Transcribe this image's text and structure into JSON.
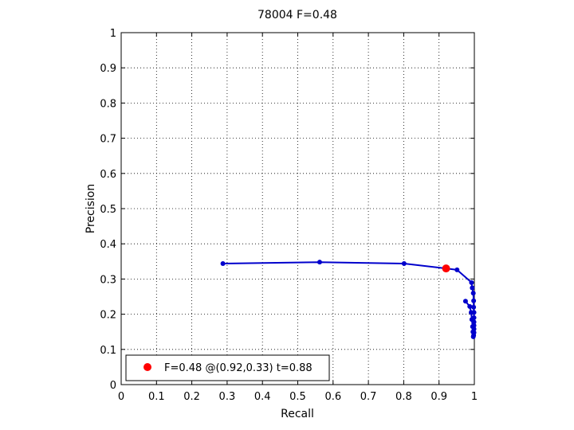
{
  "chart_data": {
    "type": "line",
    "title": "78004 F=0.48",
    "xlabel": "Recall",
    "ylabel": "Precision",
    "xlim": [
      0,
      1
    ],
    "ylim": [
      0,
      1
    ],
    "xticks": [
      0,
      0.1,
      0.2,
      0.3,
      0.4,
      0.5,
      0.6,
      0.7,
      0.8,
      0.9,
      1
    ],
    "yticks": [
      0,
      0.1,
      0.2,
      0.3,
      0.4,
      0.5,
      0.6,
      0.7,
      0.8,
      0.9,
      1
    ],
    "xtick_labels": [
      "0",
      "0.1",
      "0.2",
      "0.3",
      "0.4",
      "0.5",
      "0.6",
      "0.7",
      "0.8",
      "0.9",
      "1"
    ],
    "ytick_labels": [
      "0",
      "0.1",
      "0.2",
      "0.3",
      "0.4",
      "0.5",
      "0.6",
      "0.7",
      "0.8",
      "0.9",
      "1"
    ],
    "grid": true,
    "grid_style": "dotted",
    "series": [
      {
        "color": "#0000cc",
        "marker": "dot",
        "x": [
          0.288,
          0.562,
          0.801,
          0.92,
          0.951,
          0.992,
          0.994,
          0.997,
          0.998,
          0.998,
          0.999,
          0.999,
          0.999,
          0.999,
          0.999,
          0.999,
          0.998,
          0.997,
          0.996,
          0.995,
          0.993,
          0.991,
          0.987,
          0.975
        ],
        "y": [
          0.344,
          0.348,
          0.344,
          0.33,
          0.326,
          0.29,
          0.275,
          0.26,
          0.238,
          0.22,
          0.205,
          0.19,
          0.178,
          0.168,
          0.158,
          0.148,
          0.14,
          0.136,
          0.15,
          0.165,
          0.185,
          0.205,
          0.222,
          0.237
        ]
      }
    ],
    "highlight": {
      "x": 0.92,
      "y": 0.33,
      "color": "#ff0000"
    },
    "legend": {
      "position": "bottom-left",
      "entries": [
        {
          "label": "F=0.48 @(0.92,0.33) t=0.88",
          "color": "#ff0000",
          "marker": "dot"
        }
      ]
    }
  }
}
